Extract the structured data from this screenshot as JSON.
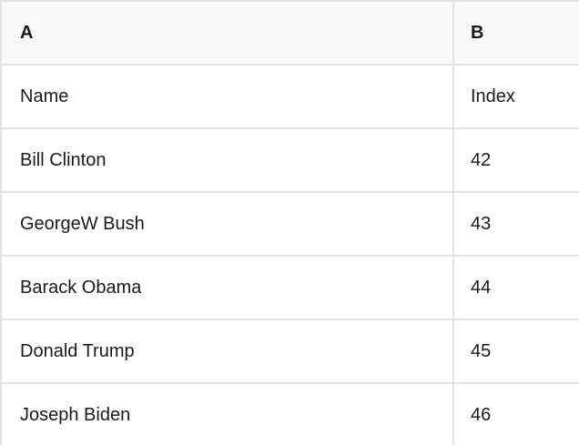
{
  "table": {
    "columns": [
      {
        "label": "A"
      },
      {
        "label": "B"
      }
    ],
    "rows": [
      {
        "a": "Name",
        "b": "Index"
      },
      {
        "a": "Bill Clinton",
        "b": "42"
      },
      {
        "a": "GeorgeW Bush",
        "b": "43"
      },
      {
        "a": "Barack Obama",
        "b": "44"
      },
      {
        "a": "Donald Trump",
        "b": "45"
      },
      {
        "a": "Joseph Biden",
        "b": "46"
      }
    ],
    "colors": {
      "header_bg": "#f8f8f8",
      "border": "#e2e2e2",
      "text": "#1a1a1a",
      "cell_bg": "#ffffff"
    }
  }
}
